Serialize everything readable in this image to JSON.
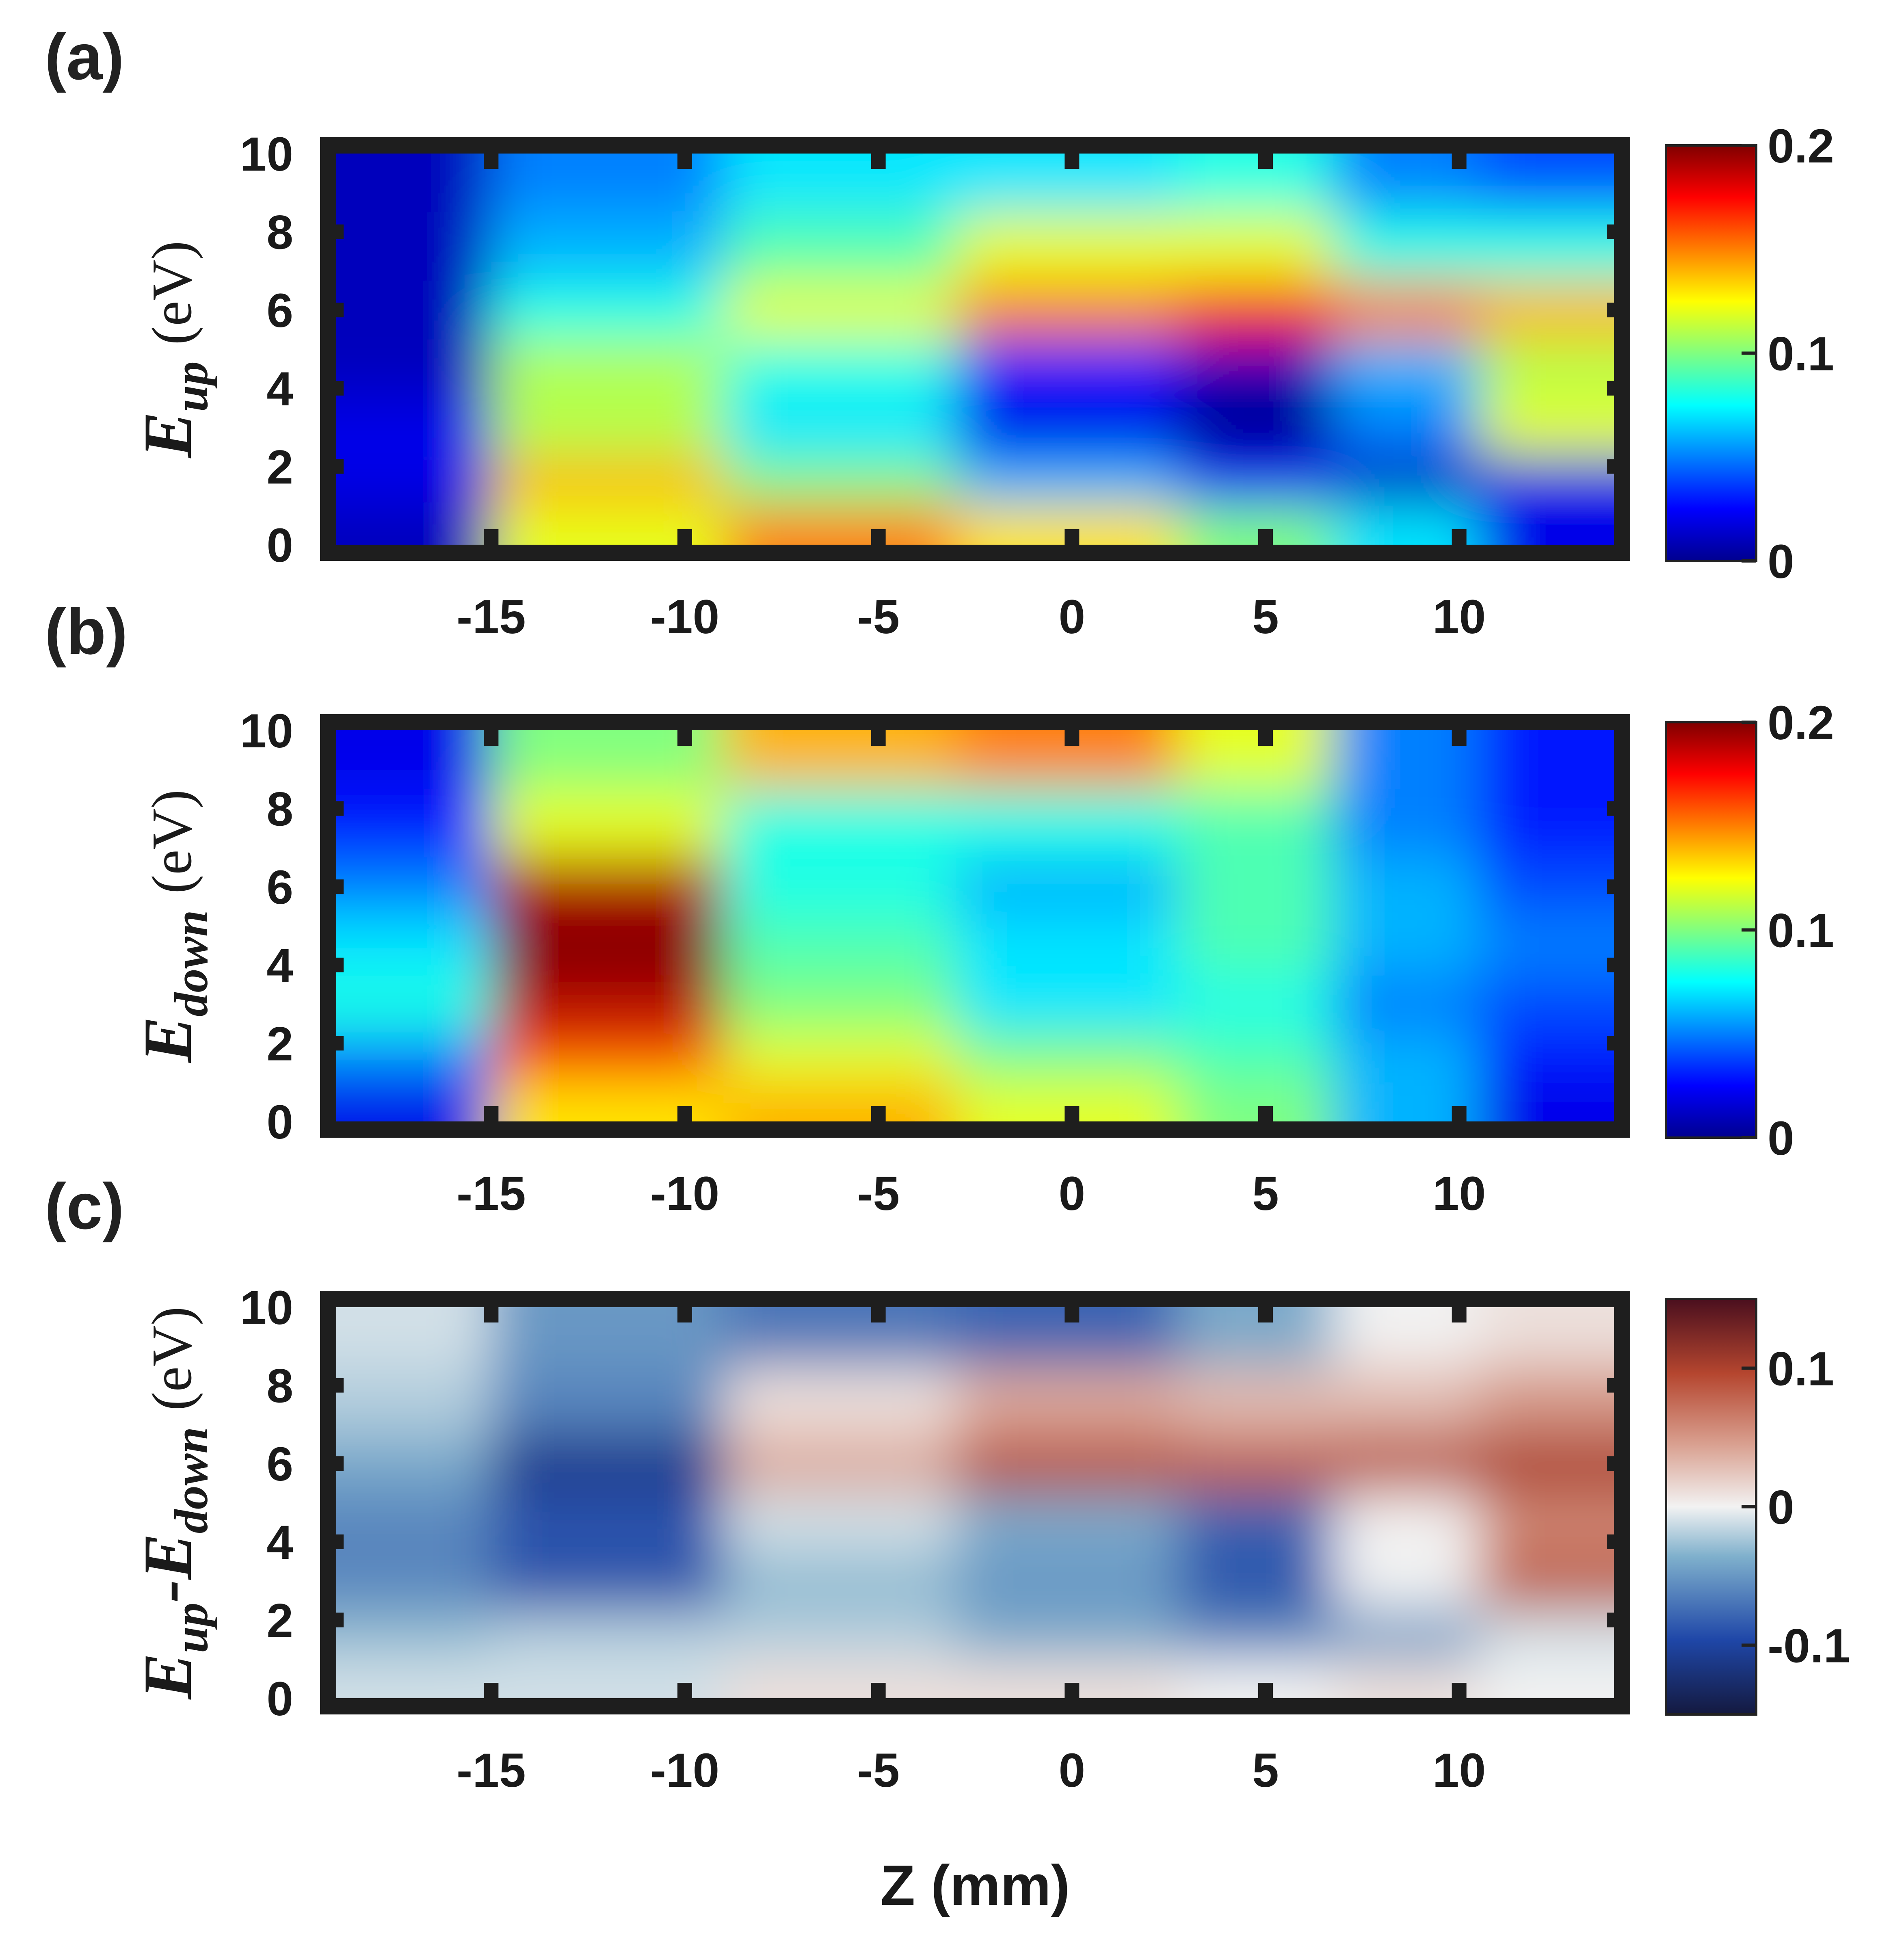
{
  "chart_data": [
    {
      "type": "heatmap",
      "panel_label": "(a)",
      "ylabel_main": "E",
      "ylabel_sub": "up",
      "ylabel_unit": "(eV)",
      "xlabel": "",
      "xlim": [
        -19,
        14
      ],
      "ylim": [
        0,
        10
      ],
      "xticks": [
        "-15",
        "-10",
        "-5",
        "0",
        "5",
        "10"
      ],
      "xtick_values": [
        -15,
        -10,
        -5,
        0,
        5,
        10
      ],
      "yticks": [
        "0",
        "2",
        "4",
        "6",
        "8",
        "10"
      ],
      "ytick_values": [
        0,
        2,
        4,
        6,
        8,
        10
      ],
      "colormap": "jet",
      "color_range": [
        0,
        0.2
      ],
      "colorbar_ticks": [
        "0",
        "0.1",
        "0.2"
      ],
      "colorbar_tick_values": [
        0,
        0.1,
        0.2
      ],
      "z_values": [
        -18,
        -12,
        -6,
        0,
        5.5,
        8,
        13
      ],
      "e_values": [
        0.5,
        1.5,
        3,
        4.5,
        6,
        7.5,
        9.5
      ],
      "values": [
        [
          0.01,
          0.12,
          0.15,
          0.13,
          0.1,
          0.07,
          0.02
        ],
        [
          0.02,
          0.14,
          0.1,
          0.06,
          0.03,
          0.01,
          0.02
        ],
        [
          0.02,
          0.11,
          0.07,
          0.02,
          0.0,
          0.05,
          0.12
        ],
        [
          0.01,
          0.11,
          0.08,
          0.03,
          0.01,
          0.06,
          0.11
        ],
        [
          0.01,
          0.08,
          0.12,
          0.15,
          0.17,
          0.15,
          0.14
        ],
        [
          0.01,
          0.06,
          0.09,
          0.12,
          0.12,
          0.08,
          0.08
        ],
        [
          0.01,
          0.05,
          0.07,
          0.07,
          0.08,
          0.05,
          0.04
        ]
      ]
    },
    {
      "type": "heatmap",
      "panel_label": "(b)",
      "ylabel_main": "E",
      "ylabel_sub": "down",
      "ylabel_unit": "(eV)",
      "xlabel": "",
      "xlim": [
        -19,
        14
      ],
      "ylim": [
        0,
        10
      ],
      "xticks": [
        "-15",
        "-10",
        "-5",
        "0",
        "5",
        "10"
      ],
      "xtick_values": [
        -15,
        -10,
        -5,
        0,
        5,
        10
      ],
      "yticks": [
        "0",
        "2",
        "4",
        "6",
        "8",
        "10"
      ],
      "ytick_values": [
        0,
        2,
        4,
        6,
        8,
        10
      ],
      "colormap": "jet",
      "color_range": [
        0,
        0.2
      ],
      "colorbar_ticks": [
        "0",
        "0.1",
        "0.2"
      ],
      "colorbar_tick_values": [
        0,
        0.1,
        0.2
      ],
      "z_values": [
        -18,
        -12,
        -6,
        0,
        5.5,
        8,
        13
      ],
      "e_values": [
        0.5,
        1.5,
        3,
        4.5,
        6,
        7.5,
        9.5
      ],
      "values": [
        [
          0.02,
          0.13,
          0.14,
          0.12,
          0.1,
          0.06,
          0.02
        ],
        [
          0.05,
          0.16,
          0.12,
          0.1,
          0.09,
          0.06,
          0.03
        ],
        [
          0.08,
          0.19,
          0.1,
          0.07,
          0.08,
          0.05,
          0.04
        ],
        [
          0.07,
          0.2,
          0.09,
          0.07,
          0.09,
          0.06,
          0.05
        ],
        [
          0.05,
          0.19,
          0.08,
          0.06,
          0.09,
          0.06,
          0.04
        ],
        [
          0.03,
          0.12,
          0.08,
          0.08,
          0.09,
          0.05,
          0.03
        ],
        [
          0.02,
          0.1,
          0.14,
          0.15,
          0.12,
          0.05,
          0.03
        ]
      ]
    },
    {
      "type": "heatmap",
      "panel_label": "(c)",
      "ylabel_main": "E",
      "ylabel_sub": "up",
      "ylabel_main2": "-E",
      "ylabel_sub2": "down",
      "ylabel_unit": "(eV)",
      "xlabel": "Z (mm)",
      "xlim": [
        -19,
        14
      ],
      "ylim": [
        0,
        10
      ],
      "xticks": [
        "-15",
        "-10",
        "-5",
        "0",
        "5",
        "10"
      ],
      "xtick_values": [
        -15,
        -10,
        -5,
        0,
        5,
        10
      ],
      "yticks": [
        "0",
        "2",
        "4",
        "6",
        "8",
        "10"
      ],
      "ytick_values": [
        0,
        2,
        4,
        6,
        8,
        10
      ],
      "colormap": "blue-white-red",
      "color_range": [
        -0.15,
        0.15
      ],
      "colorbar_ticks": [
        "-0.1",
        "0",
        "0.1"
      ],
      "colorbar_tick_values": [
        -0.1,
        0,
        0.1
      ],
      "z_values": [
        -18,
        -12,
        -6,
        0,
        5.5,
        8,
        13
      ],
      "e_values": [
        0.5,
        1.5,
        3,
        4.5,
        6,
        7.5,
        9.5
      ],
      "values": [
        [
          -0.01,
          -0.01,
          0.01,
          0.01,
          0.0,
          0.01,
          0.0
        ],
        [
          -0.03,
          -0.02,
          -0.02,
          -0.04,
          -0.06,
          -0.05,
          -0.01
        ],
        [
          -0.06,
          -0.09,
          -0.03,
          -0.05,
          -0.09,
          0.0,
          0.08
        ],
        [
          -0.06,
          -0.09,
          -0.01,
          -0.04,
          -0.08,
          0.0,
          0.06
        ],
        [
          -0.04,
          -0.11,
          0.04,
          0.09,
          0.08,
          0.09,
          0.1
        ],
        [
          -0.02,
          -0.06,
          0.01,
          0.04,
          0.03,
          0.03,
          0.05
        ],
        [
          -0.01,
          -0.05,
          -0.07,
          -0.08,
          -0.04,
          0.0,
          0.01
        ]
      ]
    }
  ]
}
